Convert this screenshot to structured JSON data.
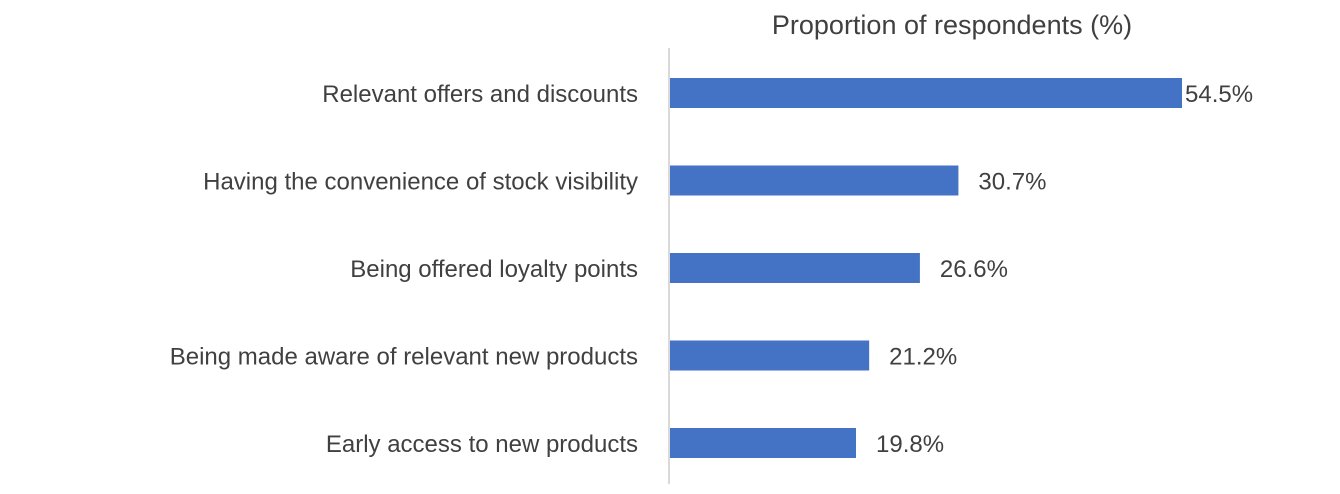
{
  "chart_data": {
    "type": "bar",
    "orientation": "horizontal",
    "title": "Proportion of respondents (%)",
    "categories": [
      "Relevant offers and discounts",
      "Having the convenience of stock visibility",
      "Being offered loyalty points",
      "Being made aware of relevant new products",
      "Early access to new products"
    ],
    "values": [
      54.5,
      30.7,
      26.6,
      21.2,
      19.8
    ],
    "value_labels": [
      "54.5%",
      "30.7%",
      "26.6%",
      "21.2%",
      "19.8%"
    ],
    "xlim": [
      0,
      54.5
    ],
    "grid": false,
    "legend": "none",
    "bar_color": "#4472C4",
    "axis_color": "#D9D9D9",
    "text_color": "#404040"
  }
}
